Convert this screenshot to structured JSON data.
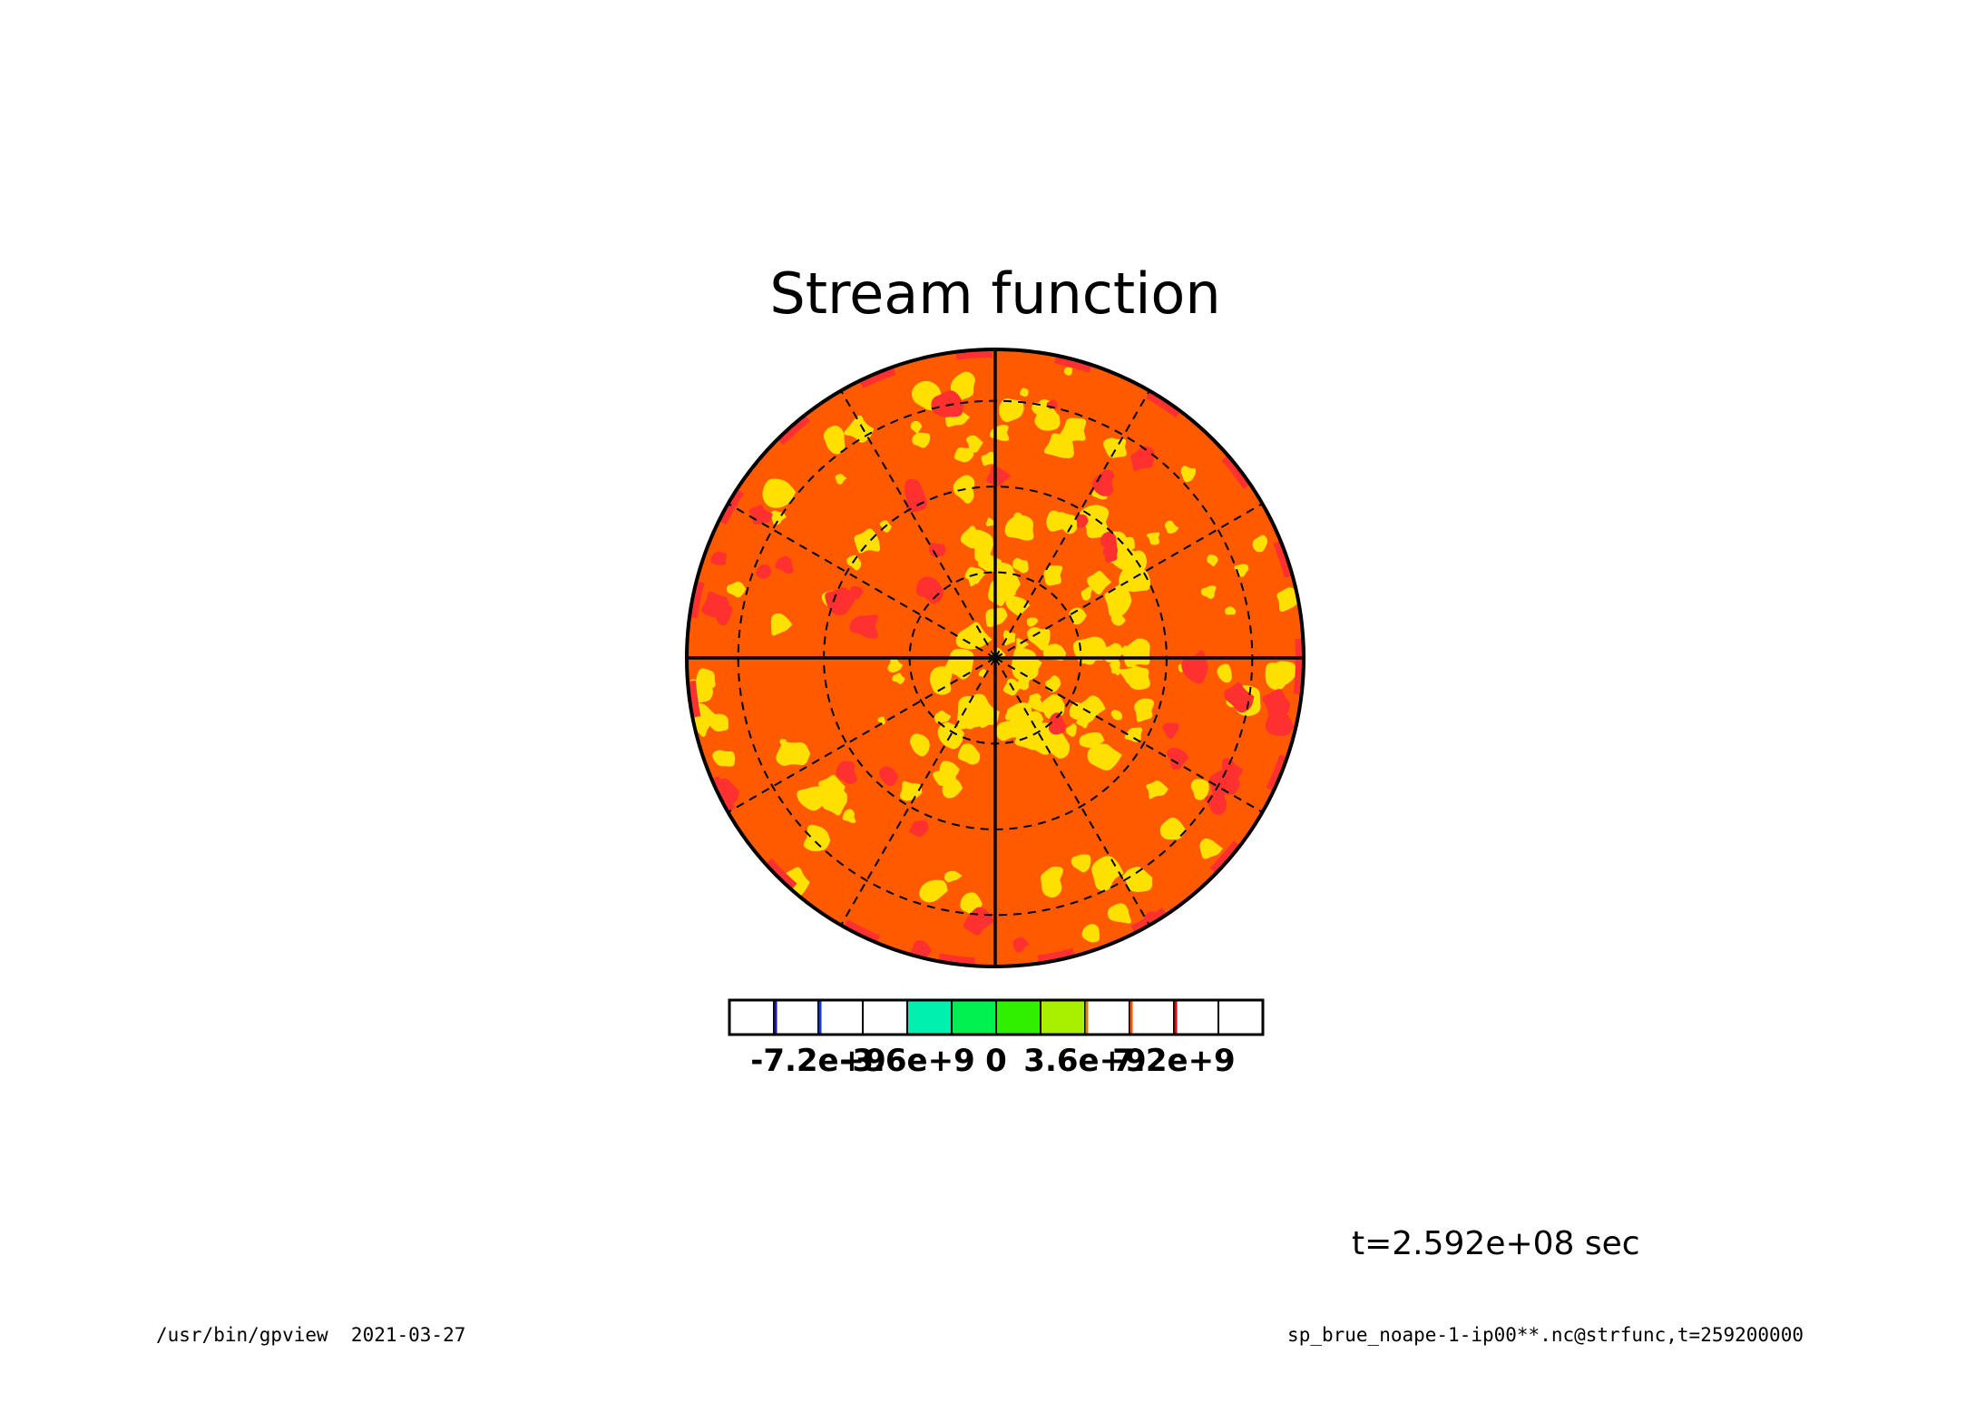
{
  "chart_data": {
    "type": "heatmap",
    "projection": "polar-stereographic",
    "title": "Stream function",
    "time_label": "t=2.592e+08 sec",
    "footer_left": "/usr/bin/gpview  2021-03-27",
    "footer_right": "sp_brue_noape-1-ip00**.nc@strfunc,t=259200000",
    "colorbar": {
      "tick_labels": [
        "-7.2e+9",
        "-3.6e+9",
        "0",
        "3.6e+9",
        "7.2e+9"
      ],
      "tick_values": [
        -7200000000.0,
        -3600000000.0,
        0,
        3600000000.0,
        7200000000.0
      ],
      "range": [
        -10800000000.0,
        10800000000.0
      ],
      "levels": [
        {
          "lo": -10800000000.0,
          "hi": -9000000000.0,
          "color": "#ffffff",
          "edge": "#000000"
        },
        {
          "lo": -9000000000.0,
          "hi": -7200000000.0,
          "color": "#ffffff",
          "edge": "#1a1aa0"
        },
        {
          "lo": -7200000000.0,
          "hi": -5400000000.0,
          "color": "#ffffff",
          "edge": "#1a3ad0"
        },
        {
          "lo": -5400000000.0,
          "hi": -3600000000.0,
          "color": "#ffffff",
          "edge": "#000000"
        },
        {
          "lo": -3600000000.0,
          "hi": -1800000000.0,
          "color": "#00f0b0",
          "edge": "#000000"
        },
        {
          "lo": -1800000000.0,
          "hi": 0,
          "color": "#00f050",
          "edge": "#000000"
        },
        {
          "lo": 0,
          "hi": 1800000000.0,
          "color": "#30f000",
          "edge": "#000000"
        },
        {
          "lo": 1800000000.0,
          "hi": 3600000000.0,
          "color": "#a8f000",
          "edge": "#000000"
        },
        {
          "lo": 3600000000.0,
          "hi": 5400000000.0,
          "color": "#ffffff",
          "edge": "#e08000"
        },
        {
          "lo": 5400000000.0,
          "hi": 7200000000.0,
          "color": "#ffffff",
          "edge": "#ff5000"
        },
        {
          "lo": 7200000000.0,
          "hi": 9000000000.0,
          "color": "#ffffff",
          "edge": "#d01010"
        },
        {
          "lo": 9000000000.0,
          "hi": 10800000000.0,
          "color": "#ffffff",
          "edge": "#000000"
        }
      ]
    },
    "field_colors": {
      "background": "#ff5a00",
      "yellow_patches": "#ffe000",
      "red_patches": "#ff3030"
    },
    "latitude_circles_dashed": 3,
    "meridians_solid_deg": [
      0,
      90,
      180,
      270
    ],
    "meridians_dashed_deg": [
      30,
      60,
      120,
      150,
      210,
      240,
      300,
      330
    ],
    "grid": true
  }
}
